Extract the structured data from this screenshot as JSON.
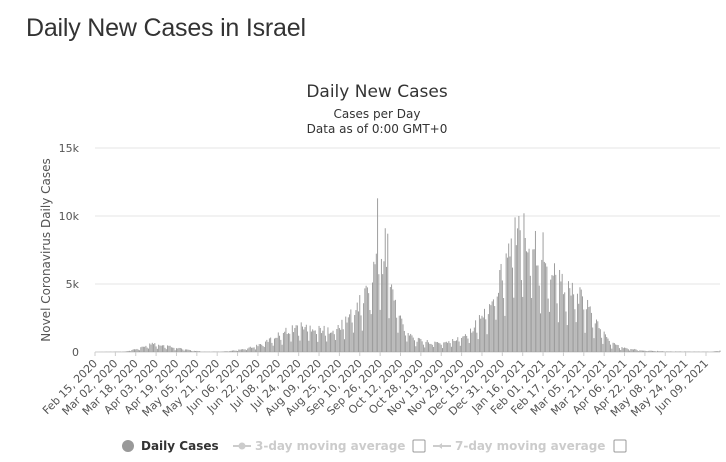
{
  "page": {
    "title": "Daily New Cases in Israel"
  },
  "chart_data": {
    "type": "bar",
    "title": "Daily New Cases",
    "subtitle_lines": [
      "Cases per Day",
      "Data as of 0:00 GMT+0"
    ],
    "ylabel": "Novel Coronavirus Daily Cases",
    "xlabel": "",
    "ylim": [
      0,
      15000
    ],
    "yticks": [
      0,
      5000,
      10000,
      15000
    ],
    "ytick_labels": [
      "0",
      "5k",
      "10k",
      "15k"
    ],
    "grid": true,
    "legend_position": "bottom",
    "bar_color": "#999999",
    "x_start": "2020-02-15",
    "x_end": "2021-06-20",
    "xtick_labels": [
      "Feb 15, 2020",
      "Mar 02, 2020",
      "Mar 18, 2020",
      "Apr 03, 2020",
      "Apr 19, 2020",
      "May 05, 2020",
      "May 21, 2020",
      "Jun 06, 2020",
      "Jun 22, 2020",
      "Jul 08, 2020",
      "Jul 24, 2020",
      "Aug 09, 2020",
      "Aug 25, 2020",
      "Sep 10, 2020",
      "Sep 26, 2020",
      "Oct 12, 2020",
      "Oct 28, 2020",
      "Nov 13, 2020",
      "Nov 29, 2020",
      "Dec 15, 2020",
      "Dec 31, 2020",
      "Jan 16, 2021",
      "Feb 01, 2021",
      "Feb 17, 2021",
      "Mar 05, 2021",
      "Mar 21, 2021",
      "Apr 06, 2021",
      "Apr 22, 2021",
      "May 08, 2021",
      "May 24, 2021",
      "Jun 09, 2021"
    ],
    "series": [
      {
        "name": "Daily Cases",
        "trend": [
          [
            "2020-02-15",
            0
          ],
          [
            "2020-03-10",
            30
          ],
          [
            "2020-03-22",
            300
          ],
          [
            "2020-03-28",
            550
          ],
          [
            "2020-04-02",
            650
          ],
          [
            "2020-04-08",
            500
          ],
          [
            "2020-04-18",
            350
          ],
          [
            "2020-04-28",
            150
          ],
          [
            "2020-05-10",
            20
          ],
          [
            "2020-05-25",
            30
          ],
          [
            "2020-06-05",
            120
          ],
          [
            "2020-06-15",
            300
          ],
          [
            "2020-06-25",
            600
          ],
          [
            "2020-07-05",
            1100
          ],
          [
            "2020-07-15",
            1600
          ],
          [
            "2020-07-25",
            1900
          ],
          [
            "2020-08-05",
            1800
          ],
          [
            "2020-08-15",
            1600
          ],
          [
            "2020-08-25",
            1800
          ],
          [
            "2020-09-03",
            2800
          ],
          [
            "2020-09-12",
            3800
          ],
          [
            "2020-09-18",
            5000
          ],
          [
            "2020-09-23",
            7200
          ],
          [
            "2020-10-01",
            6500
          ],
          [
            "2020-10-08",
            3500
          ],
          [
            "2020-10-15",
            1800
          ],
          [
            "2020-10-25",
            900
          ],
          [
            "2020-11-05",
            700
          ],
          [
            "2020-11-15",
            700
          ],
          [
            "2020-11-25",
            900
          ],
          [
            "2020-12-05",
            1500
          ],
          [
            "2020-12-15",
            2600
          ],
          [
            "2020-12-22",
            3600
          ],
          [
            "2020-12-28",
            5000
          ],
          [
            "2021-01-05",
            7500
          ],
          [
            "2021-01-12",
            8300
          ],
          [
            "2021-01-19",
            8600
          ],
          [
            "2021-01-26",
            7300
          ],
          [
            "2021-02-03",
            6200
          ],
          [
            "2021-02-10",
            5800
          ],
          [
            "2021-02-20",
            4600
          ],
          [
            "2021-03-01",
            4200
          ],
          [
            "2021-03-10",
            3000
          ],
          [
            "2021-03-18",
            1700
          ],
          [
            "2021-03-26",
            700
          ],
          [
            "2021-04-05",
            300
          ],
          [
            "2021-04-20",
            120
          ],
          [
            "2021-05-10",
            40
          ],
          [
            "2021-06-14",
            20
          ],
          [
            "2021-06-20",
            120
          ]
        ],
        "peaks": [
          [
            "2020-09-24",
            11300
          ],
          [
            "2020-09-30",
            9100
          ],
          [
            "2020-10-02",
            8700
          ],
          [
            "2021-01-10",
            9900
          ],
          [
            "2021-01-13",
            10000
          ],
          [
            "2021-01-17",
            10200
          ],
          [
            "2021-01-26",
            8900
          ],
          [
            "2021-02-01",
            8800
          ]
        ]
      },
      {
        "name": "3-day moving average",
        "visible": false
      },
      {
        "name": "7-day moving average",
        "visible": false
      }
    ]
  },
  "legend": {
    "items": [
      {
        "label": "Daily Cases",
        "active": true,
        "color": "#999999"
      },
      {
        "label": "3-day moving average",
        "active": false,
        "color": "#cccccc"
      },
      {
        "label": "7-day moving average",
        "active": false,
        "color": "#cccccc"
      }
    ]
  }
}
